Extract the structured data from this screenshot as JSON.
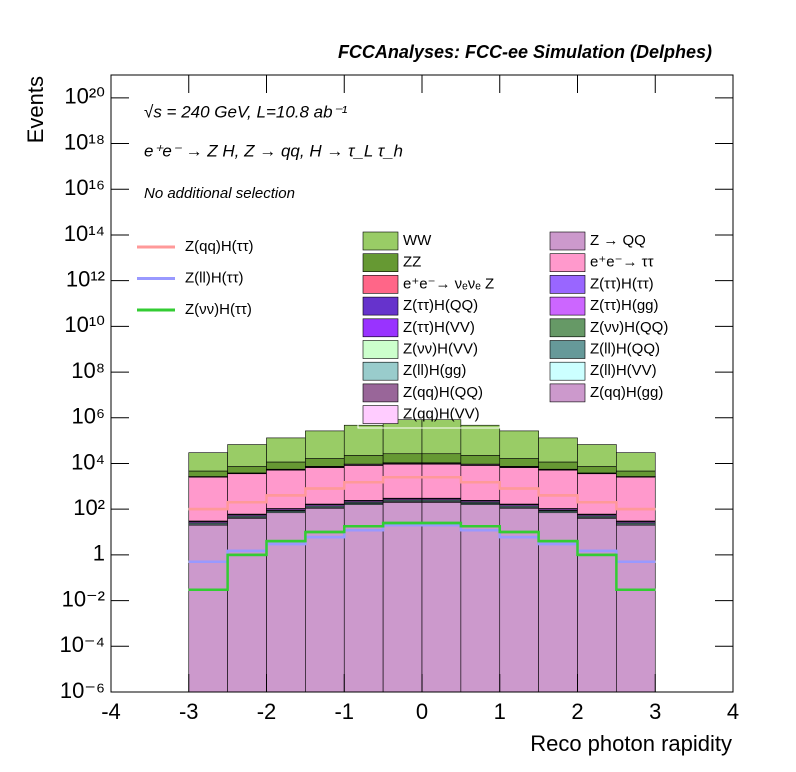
{
  "chart_data": {
    "type": "histogram",
    "title": "FCCAnalyses: FCC-ee Simulation (Delphes)",
    "annotations": [
      "√s = 240 GeV, L=10.8 ab⁻¹",
      "e⁺e⁻ → Z H, Z → qq, H → τ_L τ_h",
      "No additional selection"
    ],
    "xlabel": "Reco photon rapidity",
    "ylabel": "Events",
    "log_y": true,
    "xlim": [
      -4,
      4
    ],
    "xticks": [
      -4,
      -3,
      -2,
      -1,
      0,
      1,
      2,
      3,
      4
    ],
    "ylim": [
      1e-06,
      1e+21
    ],
    "yticks": [
      {
        "value": 1e-06,
        "label": "10⁻⁶"
      },
      {
        "value": 0.0001,
        "label": "10⁻⁴"
      },
      {
        "value": 0.01,
        "label": "10⁻²"
      },
      1,
      {
        "value": 100,
        "label": "10²"
      },
      {
        "value": 10000,
        "label": "10⁴"
      },
      {
        "value": 1000000,
        "label": "10⁶"
      },
      {
        "value": 100000000.0,
        "label": "10⁸"
      },
      {
        "value": 10000000000.0,
        "label": "10¹⁰"
      },
      {
        "value": 1000000000000.0,
        "label": "10¹²"
      },
      {
        "value": 100000000000000.0,
        "label": "10¹⁴"
      },
      {
        "value": 1e+16,
        "label": "10¹⁶"
      },
      {
        "value": 1e+18,
        "label": "10¹⁸"
      },
      {
        "value": 1e+20,
        "label": "10²⁰"
      }
    ],
    "bins": [
      -3,
      -2.5,
      -2,
      -1.5,
      -1,
      -0.5,
      0,
      0.5,
      1,
      1.5,
      2,
      2.5,
      3
    ],
    "series": [
      {
        "name": "WW",
        "color": "#99cc66",
        "values": [
          25000,
          60000,
          120000,
          250000,
          450000,
          800000,
          800000,
          450000,
          250000,
          120000,
          60000,
          25000
        ]
      },
      {
        "name": "ZZ",
        "color": "#669933",
        "values": [
          2000,
          3500,
          6000,
          9000,
          13000,
          16000,
          16000,
          13000,
          9000,
          6000,
          3500,
          2000
        ]
      },
      {
        "name": "e⁺e⁻→ νₑνₑ Z",
        "color": "#ff6688",
        "values": [
          12,
          8,
          6,
          5,
          6,
          3,
          3,
          6,
          5,
          6,
          8,
          12
        ]
      },
      {
        "name": "Z(ττ)H(QQ)",
        "color": "#6633cc",
        "values": [
          5,
          10,
          18,
          28,
          40,
          50,
          50,
          40,
          28,
          18,
          10,
          5
        ]
      },
      {
        "name": "Z(ττ)H(VV)",
        "color": "#9933ff",
        "values": [
          3,
          6,
          11,
          17,
          25,
          30,
          30,
          25,
          17,
          11,
          6,
          3
        ]
      },
      {
        "name": "Z(νν)H(VV)",
        "color": "#ccffcc",
        "values": [
          5,
          10,
          18,
          28,
          40,
          50,
          50,
          40,
          28,
          18,
          10,
          5
        ]
      },
      {
        "name": "Z(ll)H(gg)",
        "color": "#99cccc",
        "values": [
          0.5,
          1,
          2,
          3,
          4,
          5,
          5,
          4,
          3,
          2,
          1,
          0.5
        ]
      },
      {
        "name": "Z(qq)H(QQ)",
        "color": "#996699",
        "values": [
          100,
          200,
          350,
          550,
          800,
          1000,
          1000,
          800,
          550,
          350,
          200,
          100
        ]
      },
      {
        "name": "Z(qq)H(VV)",
        "color": "#ffccff",
        "values": [
          30,
          60,
          100,
          170,
          250,
          300,
          300,
          250,
          170,
          100,
          60,
          30
        ]
      },
      {
        "name": "Z → QQ",
        "color": "#cc99cc",
        "values": [
          0,
          0,
          0.1,
          0,
          0,
          0.3,
          0.8,
          0,
          0,
          0,
          0.2,
          0
        ]
      },
      {
        "name": "e⁺e⁻→ ττ",
        "color": "#ff99cc",
        "values": [
          2500,
          3500,
          5000,
          6500,
          8000,
          9000,
          9000,
          8000,
          6500,
          5000,
          3500,
          2500
        ]
      },
      {
        "name": "Z(ττ)H(ττ)",
        "color": "#9966ff",
        "values": [
          2,
          4,
          7,
          11,
          16,
          20,
          20,
          16,
          11,
          7,
          4,
          2
        ]
      },
      {
        "name": "Z(ττ)H(gg)",
        "color": "#cc66ff",
        "values": [
          3,
          6,
          11,
          17,
          25,
          30,
          30,
          25,
          17,
          11,
          6,
          3
        ]
      },
      {
        "name": "Z(νν)H(QQ)",
        "color": "#669966",
        "values": [
          0.5,
          1,
          1.5,
          2,
          2.5,
          3,
          3,
          2.5,
          2,
          1.5,
          1,
          0.5
        ]
      },
      {
        "name": "Z(ll)H(QQ)",
        "color": "#669999",
        "values": [
          3,
          6,
          11,
          17,
          25,
          30,
          30,
          25,
          17,
          11,
          6,
          3
        ]
      },
      {
        "name": "Z(ll)H(VV)",
        "color": "#ccffff",
        "values": [
          2,
          4,
          7,
          11,
          16,
          20,
          20,
          16,
          11,
          7,
          4,
          2
        ]
      },
      {
        "name": "Z(qq)H(gg)",
        "color": "#cc99cc",
        "values": [
          20,
          40,
          70,
          110,
          160,
          200,
          200,
          160,
          110,
          70,
          40,
          20
        ]
      }
    ],
    "lines": [
      {
        "name": "Z(qq)H(ττ)",
        "color": "#ff9999",
        "values": [
          100,
          200,
          400,
          800,
          1500,
          2500,
          2500,
          1500,
          800,
          400,
          200,
          100
        ]
      },
      {
        "name": "Z(ll)H(ττ)",
        "color": "#9999ff",
        "values": [
          0.5,
          1.5,
          3,
          6,
          12,
          20,
          20,
          12,
          6,
          3,
          1.5,
          0.5
        ]
      },
      {
        "name": "Z(νν)H(ττ)",
        "color": "#33cc33",
        "values": [
          0.03,
          1,
          4,
          10,
          18,
          25,
          25,
          18,
          10,
          4,
          1,
          0.03
        ]
      }
    ]
  }
}
